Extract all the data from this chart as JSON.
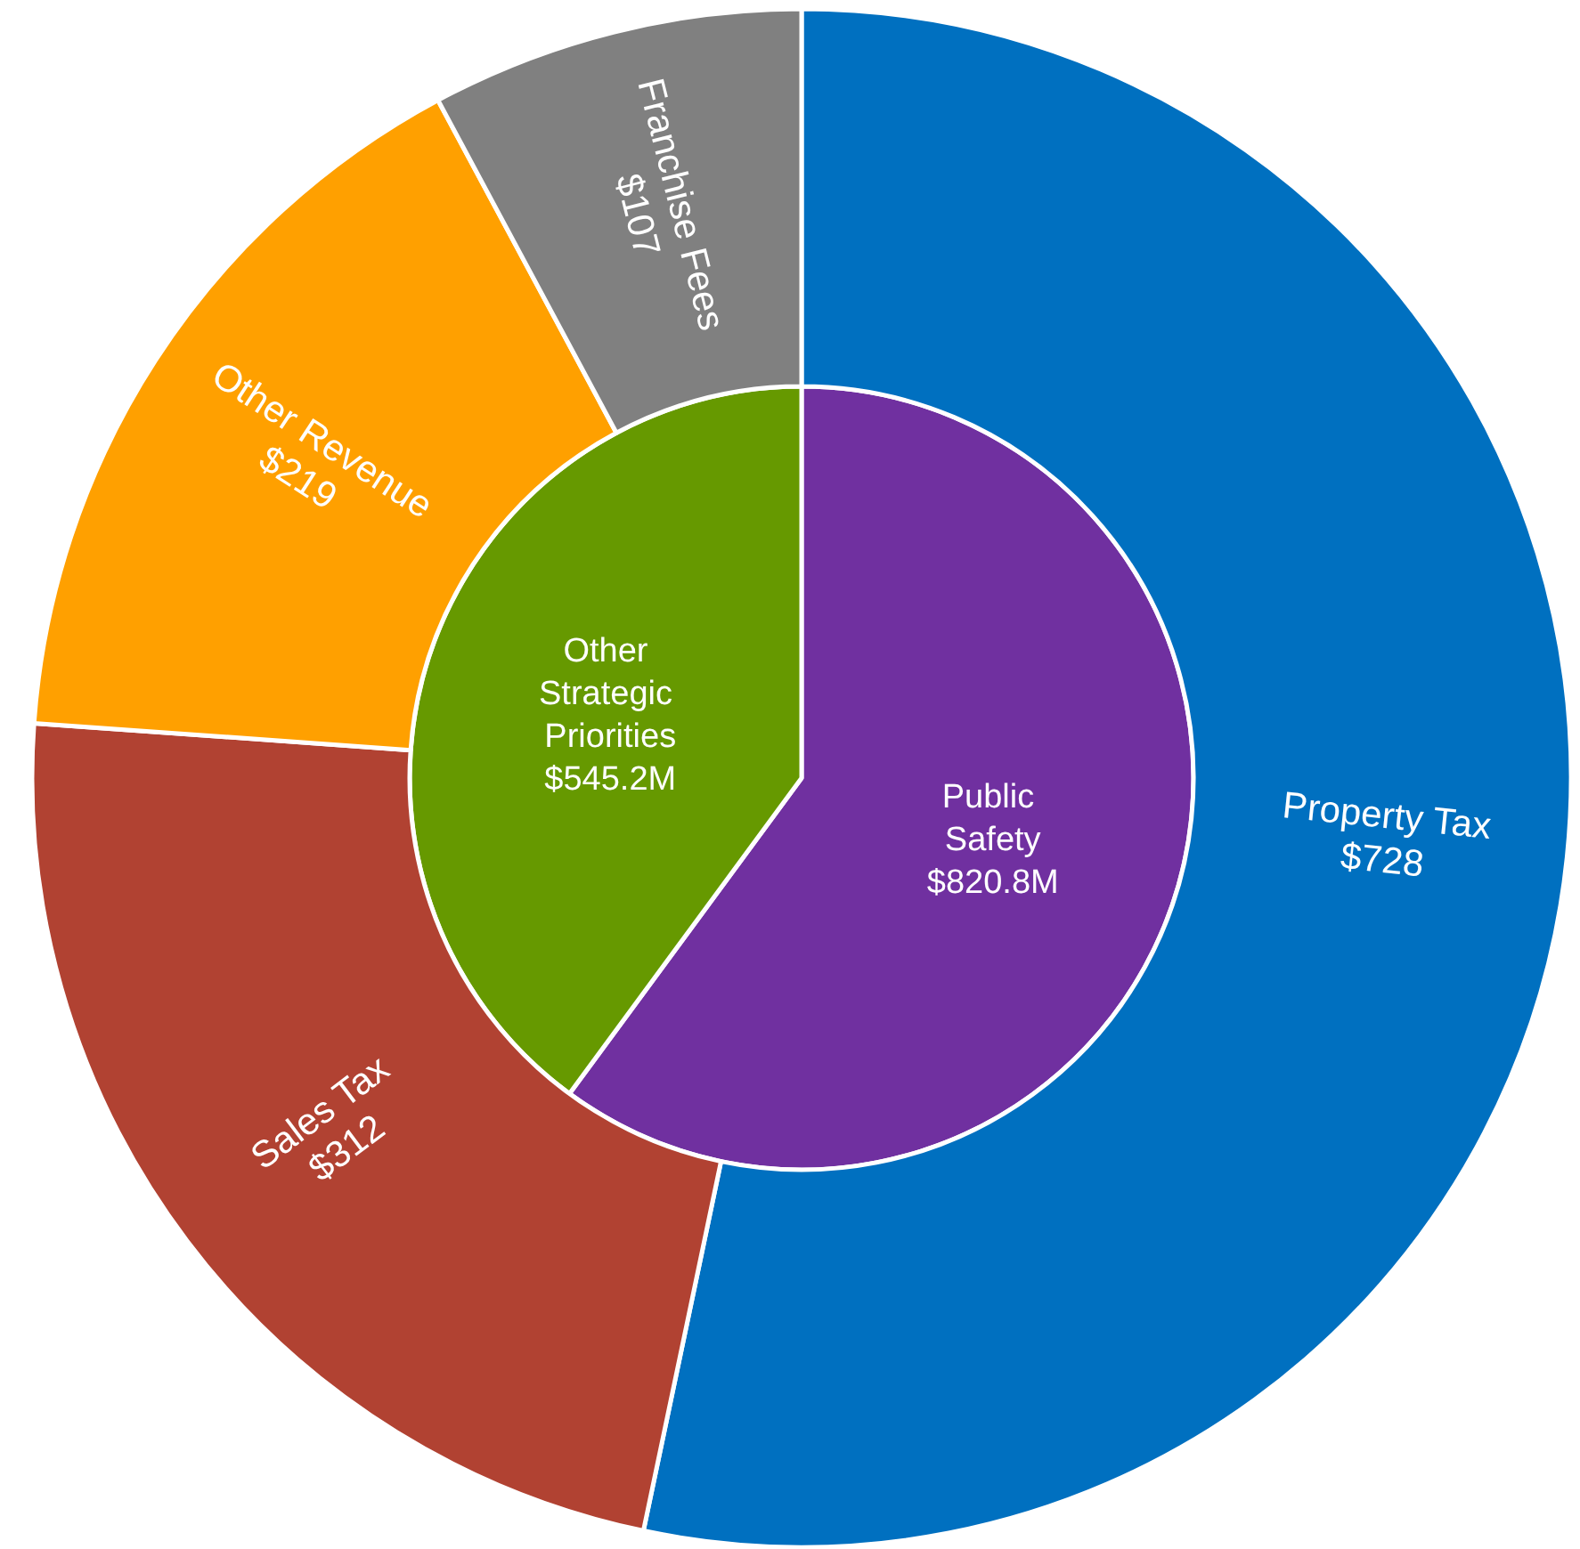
{
  "chart_data": [
    {
      "type": "pie",
      "categories": [
        "Public Safety",
        "Other Strategic Priorities"
      ],
      "values": [
        820.8,
        545.2
      ],
      "value_labels": [
        "$820.8M",
        "$545.2M"
      ],
      "colors": [
        "#7030a0",
        "#669900"
      ],
      "legend": false
    },
    {
      "type": "donut",
      "categories": [
        "Property Tax",
        "Sales Tax",
        "Other Revenue",
        "Franchise Fees"
      ],
      "values": [
        728,
        312,
        219,
        107
      ],
      "value_labels": [
        "$728",
        "$312",
        "$219",
        "$107"
      ],
      "colors": [
        "#0070c0",
        "#b14232",
        "#ffa000",
        "#808080"
      ],
      "legend": false
    }
  ]
}
